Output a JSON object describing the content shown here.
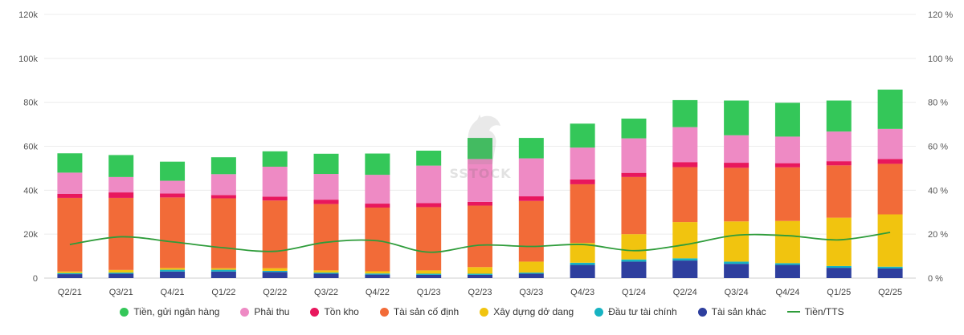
{
  "chart_data": {
    "type": "bar",
    "stacked": true,
    "categories": [
      "Q2/21",
      "Q3/21",
      "Q4/21",
      "Q1/22",
      "Q2/22",
      "Q3/22",
      "Q4/22",
      "Q1/23",
      "Q2/23",
      "Q3/23",
      "Q4/23",
      "Q1/24",
      "Q2/24",
      "Q3/24",
      "Q4/24",
      "Q1/25",
      "Q2/25"
    ],
    "left_axis": {
      "min": 0,
      "max": 120000,
      "ticks": [
        "0",
        "20k",
        "40k",
        "60k",
        "80k",
        "100k",
        "120k"
      ]
    },
    "right_axis": {
      "min": 0,
      "max": 120,
      "ticks": [
        "0 %",
        "20 %",
        "40 %",
        "60 %",
        "80 %",
        "100 %",
        "120 %"
      ]
    },
    "series": [
      {
        "name": "Tài sản khác",
        "color": "#2e3f9e",
        "values": [
          1800,
          2000,
          3000,
          3000,
          2800,
          2000,
          1600,
          1500,
          1500,
          2000,
          6000,
          7500,
          8000,
          6500,
          6000,
          4700,
          4400
        ]
      },
      {
        "name": "Đầu tư tài chính",
        "color": "#17b3c2",
        "values": [
          500,
          500,
          800,
          800,
          500,
          500,
          500,
          500,
          500,
          500,
          1000,
          1000,
          1000,
          1000,
          800,
          800,
          800
        ]
      },
      {
        "name": "Xây dựng dở dang",
        "color": "#f1c40f",
        "values": [
          700,
          1200,
          800,
          700,
          1200,
          1000,
          1000,
          1500,
          3000,
          5000,
          9000,
          11500,
          16500,
          18300,
          19200,
          22000,
          23800
        ]
      },
      {
        "name": "Tài sản cố định",
        "color": "#f26b38",
        "values": [
          33500,
          32800,
          32100,
          31800,
          30800,
          30200,
          29000,
          28800,
          28000,
          27600,
          26700,
          26000,
          25000,
          24400,
          24400,
          23800,
          23000
        ]
      },
      {
        "name": "Tồn kho",
        "color": "#e8175d",
        "values": [
          1800,
          2500,
          1800,
          1500,
          1800,
          2000,
          1800,
          1800,
          1700,
          2100,
          2200,
          1900,
          2300,
          2300,
          1900,
          1900,
          2200
        ]
      },
      {
        "name": "Phải thu",
        "color": "#ee8ac4",
        "values": [
          9700,
          7000,
          5800,
          9500,
          13600,
          11700,
          13100,
          17100,
          19500,
          17300,
          14500,
          15700,
          15900,
          12500,
          12100,
          13500,
          13700
        ]
      },
      {
        "name": "Tiền, gửi ngân hàng",
        "color": "#34c759",
        "values": [
          8800,
          10000,
          8700,
          7700,
          7000,
          9200,
          9700,
          6800,
          9600,
          9300,
          10900,
          9000,
          12300,
          15800,
          15400,
          14100,
          17900
        ]
      }
    ],
    "line": {
      "name": "Tiền/TTS",
      "color": "#2e9c3a",
      "axis": "right",
      "values": [
        15.3,
        18.8,
        16.5,
        13.8,
        12.2,
        16.3,
        17.0,
        11.8,
        15.0,
        14.4,
        15.3,
        12.5,
        15.2,
        19.5,
        19.3,
        17.4,
        20.8
      ]
    },
    "legend_position": "bottom",
    "grid": true,
    "watermark": "SSTOCK"
  }
}
